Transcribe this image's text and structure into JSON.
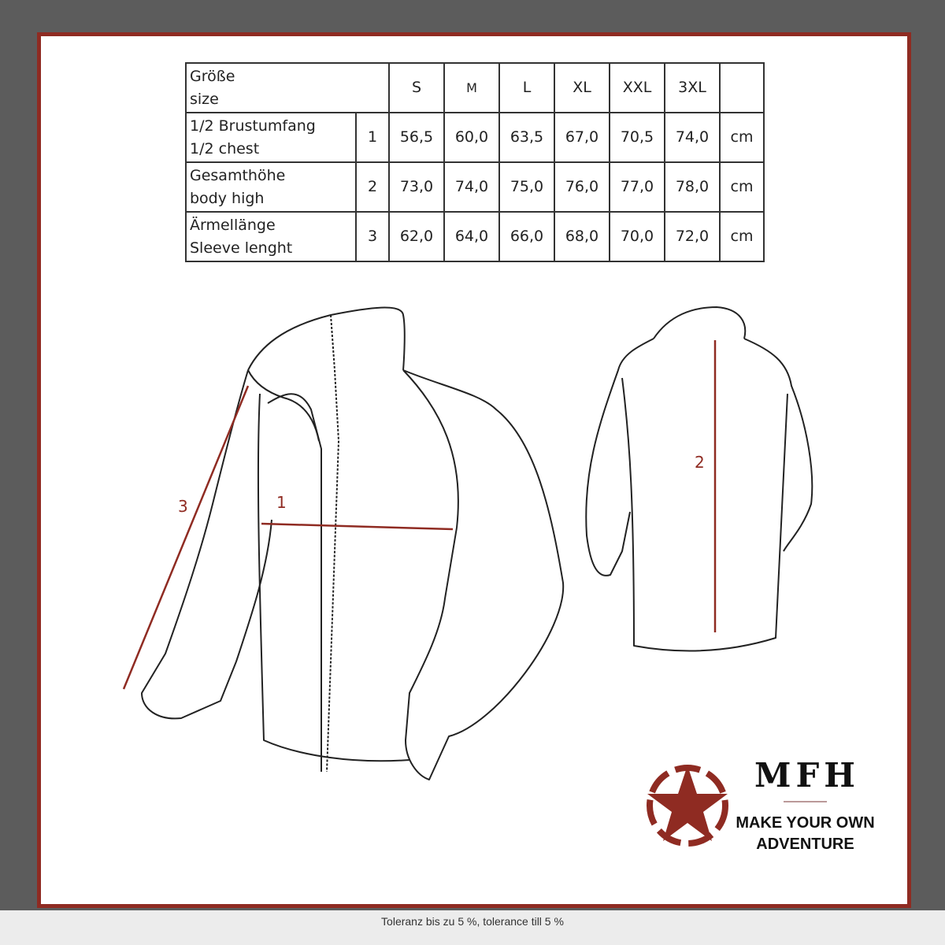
{
  "table": {
    "header": {
      "label": [
        "Größe",
        "size"
      ],
      "sizes": [
        "S",
        "M",
        "L",
        "XL",
        "XXL",
        "3XL"
      ]
    },
    "rows": [
      {
        "label": [
          "1/2 Brustumfang",
          "1/2 chest"
        ],
        "num": "1",
        "values": [
          "56,5",
          "60,0",
          "63,5",
          "67,0",
          "70,5",
          "74,0"
        ],
        "unit": "cm"
      },
      {
        "label": [
          "Gesamthöhe",
          "body high"
        ],
        "num": "2",
        "values": [
          "73,0",
          "74,0",
          "75,0",
          "76,0",
          "77,0",
          "78,0"
        ],
        "unit": "cm"
      },
      {
        "label": [
          "Ärmellänge",
          "Sleeve lenght"
        ],
        "num": "3",
        "values": [
          "62,0",
          "64,0",
          "66,0",
          "68,0",
          "70,0",
          "72,0"
        ],
        "unit": "cm"
      }
    ]
  },
  "measures": {
    "m1": "1",
    "m2": "2",
    "m3": "3"
  },
  "logo": {
    "brand": "MFH",
    "slogan": [
      "MAKE YOUR OWN",
      "ADVENTURE"
    ],
    "icon": "star-in-broken-circle-icon"
  },
  "footer": "Toleranz bis zu 5 %, tolerance till 5 %",
  "colors": {
    "accent": "#8f2b22",
    "background": "#5c5c5c"
  }
}
